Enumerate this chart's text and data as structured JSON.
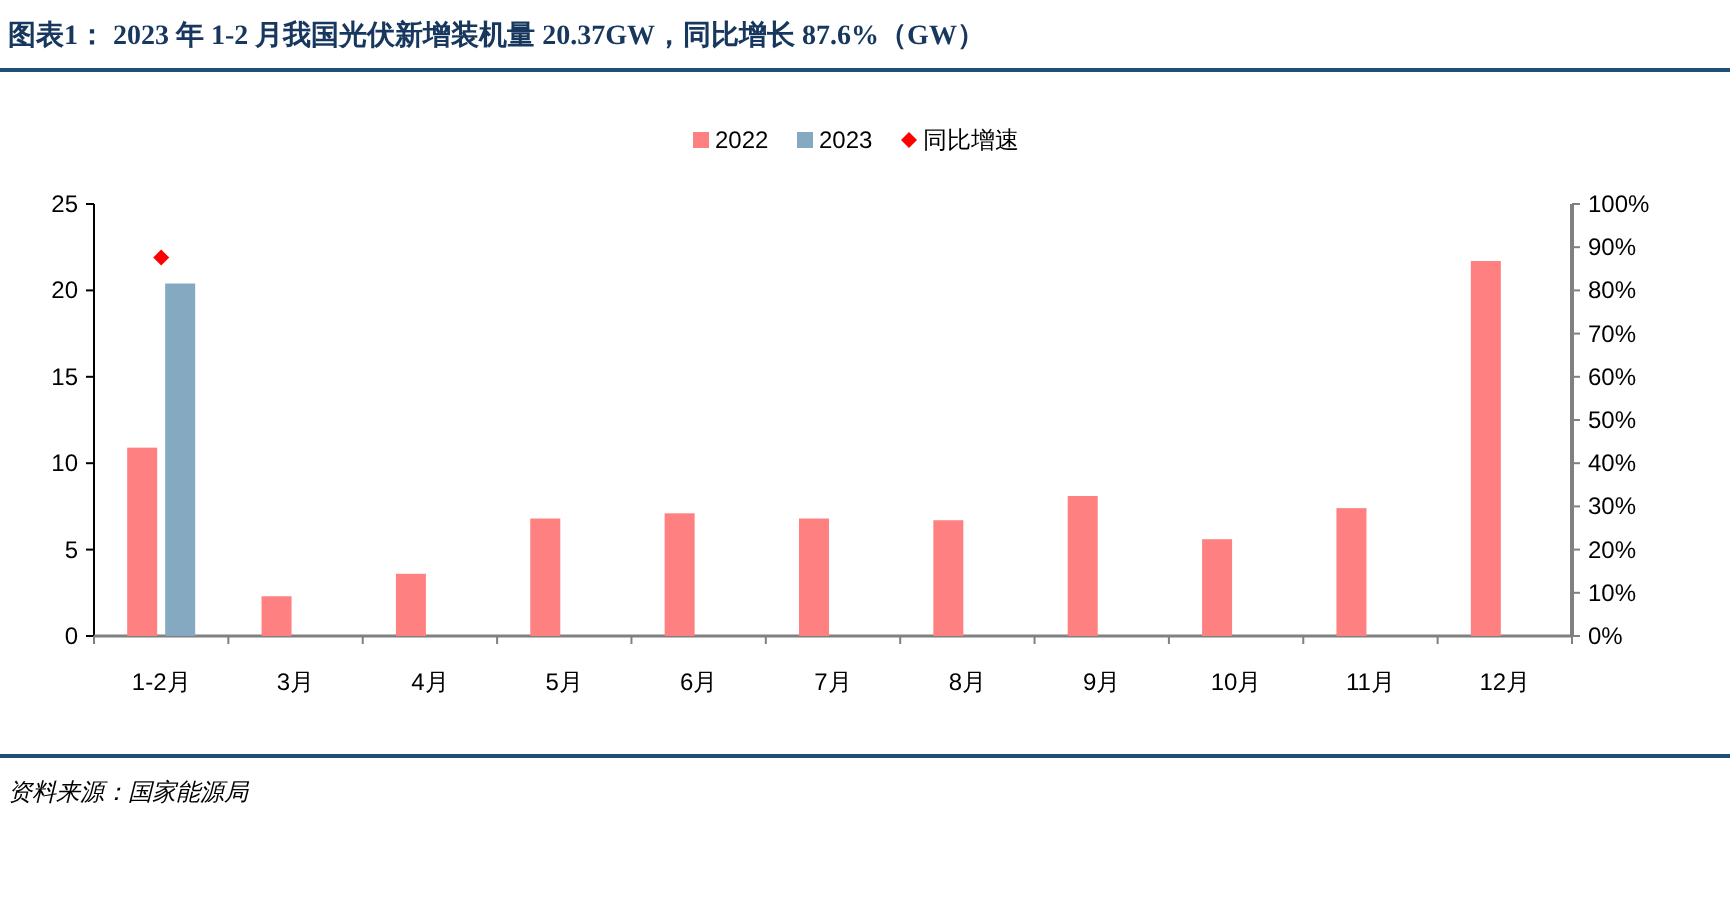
{
  "chart_data": {
    "type": "bar",
    "title": "图表1： 2023 年 1-2 月我国光伏新增装机量 20.37GW，同比增长 87.6%（GW）",
    "categories": [
      "1-2月",
      "3月",
      "4月",
      "5月",
      "6月",
      "7月",
      "8月",
      "9月",
      "10月",
      "11月",
      "12月"
    ],
    "series": [
      {
        "name": "2022",
        "color": "#ff8080",
        "values": [
          10.9,
          2.3,
          3.6,
          6.8,
          7.1,
          6.8,
          6.7,
          8.1,
          5.6,
          7.4,
          21.7
        ]
      },
      {
        "name": "2023",
        "color": "#84a9c0",
        "values": [
          20.4,
          null,
          null,
          null,
          null,
          null,
          null,
          null,
          null,
          null,
          null
        ]
      },
      {
        "name": "同比增速",
        "type": "scatter",
        "axis": "y2",
        "marker": "diamond",
        "color": "#ff0000",
        "values": [
          87.6,
          null,
          null,
          null,
          null,
          null,
          null,
          null,
          null,
          null,
          null
        ]
      }
    ],
    "ylim": [
      0,
      25
    ],
    "yticks": [
      0,
      5,
      10,
      15,
      20,
      25
    ],
    "y2lim": [
      0,
      100
    ],
    "y2ticks": [
      {
        "value": 0,
        "label": "0%"
      },
      {
        "value": 10,
        "label": "10%"
      },
      {
        "value": 20,
        "label": "20%"
      },
      {
        "value": 30,
        "label": "30%"
      },
      {
        "value": 40,
        "label": "40%"
      },
      {
        "value": 50,
        "label": "50%"
      },
      {
        "value": 60,
        "label": "60%"
      },
      {
        "value": 70,
        "label": "70%"
      },
      {
        "value": 80,
        "label": "80%"
      },
      {
        "value": 90,
        "label": "90%"
      },
      {
        "value": 100,
        "label": "100%"
      }
    ],
    "grid": false,
    "legend": "top",
    "annotations": [
      "资料来源：国家能源局"
    ]
  }
}
